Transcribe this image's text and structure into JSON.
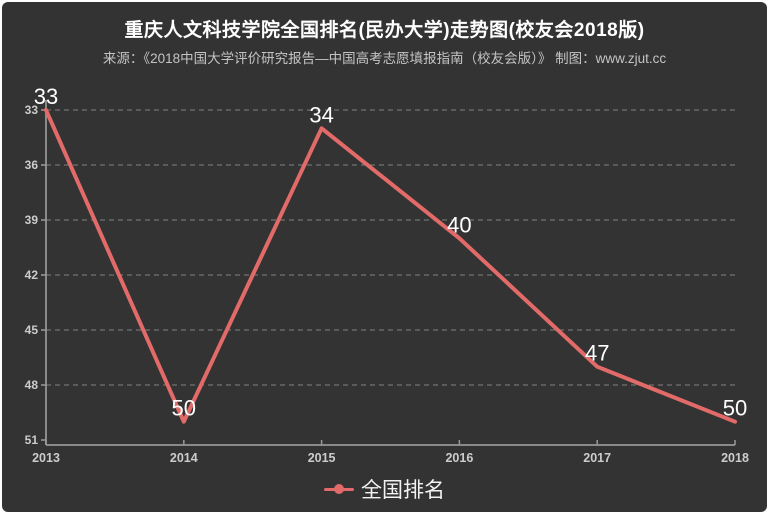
{
  "header": {
    "title": "重庆人文科技学院全国排名(民办大学)走势图(校友会2018版)",
    "source_line": "来源：《2018中国大学评价研究报告—中国高考志愿填报指南（校友会版）》 制图：www.zjut.cc"
  },
  "legend": {
    "label": "全国排名"
  },
  "colors": {
    "background": "#333333",
    "frame": "#ffffff",
    "line": "#e26b69",
    "grid": "#9a9a9a",
    "axis": "#9a9a9a",
    "tick_text": "#cccccc",
    "data_label_text": "#ffffff",
    "title_text": "#ffffff",
    "source_text": "#c4c4c4"
  },
  "chart_data": {
    "type": "line",
    "title": "重庆人文科技学院全国排名(民办大学)走势图(校友会2018版)",
    "subtitle": "来源：《2018中国大学评价研究报告—中国高考志愿填报指南（校友会版）》 制图：www.zjut.cc",
    "categories": [
      "2013",
      "2014",
      "2015",
      "2016",
      "2017",
      "2018"
    ],
    "series": [
      {
        "name": "全国排名",
        "values": [
          33,
          50,
          34,
          40,
          47,
          50
        ]
      }
    ],
    "data_labels_shown": [
      33,
      50,
      34,
      40,
      47,
      50
    ],
    "xlabel": "",
    "ylabel": "",
    "y_axis": {
      "inverted": true,
      "range": [
        33,
        51
      ],
      "ticks": [
        33,
        36,
        39,
        42,
        45,
        48,
        51
      ]
    },
    "grid": "horizontal-dashed",
    "legend_position": "bottom-center",
    "legend_entries": [
      "全国排名"
    ]
  }
}
